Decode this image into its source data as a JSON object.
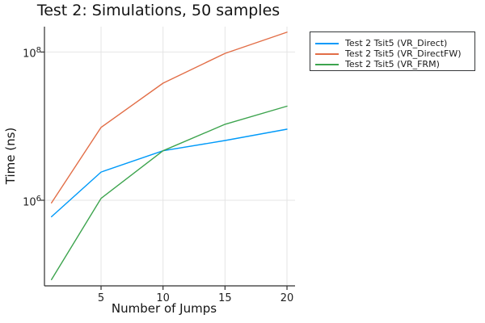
{
  "chart_data": {
    "type": "line",
    "title": "Test 2: Simulations, 50 samples",
    "xlabel": "Number of Jumps",
    "ylabel": "Time (ns)",
    "x": [
      1,
      5,
      10,
      15,
      20
    ],
    "series": [
      {
        "name": "Test 2 Tsit5 (VR_Direct)",
        "color": "#009af9",
        "values": [
          600000.0,
          2400000.0,
          4650000.0,
          6400000.0,
          9100000.0
        ]
      },
      {
        "name": "Test 2 Tsit5 (VR_DirectFW)",
        "color": "#e26e47",
        "values": [
          920000.0,
          9600000.0,
          38000000.0,
          96000000.0,
          185000000.0
        ]
      },
      {
        "name": "Test 2 Tsit5 (VR_FRM)",
        "color": "#3da44e",
        "values": [
          85000.0,
          1060000.0,
          4650000.0,
          10600000.0,
          18600000.0
        ]
      }
    ],
    "x_ticks": [
      {
        "value": 5,
        "label": "5"
      },
      {
        "value": 10,
        "label": "10"
      },
      {
        "value": 15,
        "label": "15"
      },
      {
        "value": 20,
        "label": "20"
      }
    ],
    "y_ticks": [
      {
        "value": 1000000.0,
        "base": "10",
        "exponent": "6"
      },
      {
        "value": 100000000.0,
        "base": "10",
        "exponent": "8"
      }
    ],
    "xlim": [
      0.434,
      20.65
    ],
    "ylim": [
      70000.0,
      220000000.0
    ],
    "y_scale": "log10",
    "grid": true,
    "legend_position": "outer-top-right",
    "colors": {
      "grid": "#e4e4e4",
      "spine": "#2f2f2f",
      "tick_text": "#1f1f1f",
      "background": "#ffffff",
      "legend_border": "#36383a"
    }
  }
}
